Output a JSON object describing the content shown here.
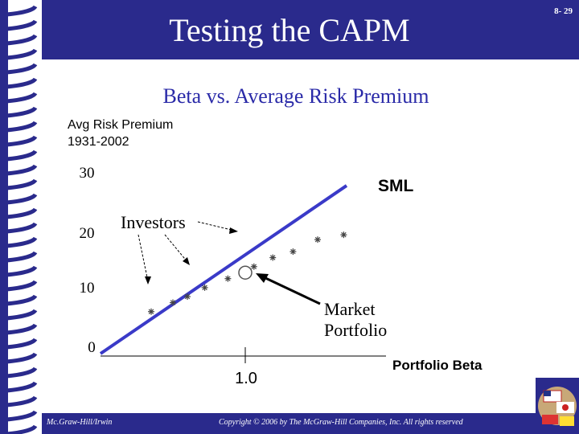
{
  "slide": {
    "title": "Testing the CAPM",
    "number": "8- 29",
    "footer_publisher": "Mc.Graw-Hill/Irwin",
    "footer_copyright": "Copyright © 2006 by The McGraw-Hill Companies, Inc. All rights reserved"
  },
  "colors": {
    "band": "#2a2a8c",
    "accent_text": "#2a2aa8",
    "sml_line": "#3a3ac8",
    "points": "#444444"
  },
  "chart_data": {
    "type": "scatter",
    "title": "Beta vs. Average Risk Premium",
    "ylabel_line1": "Avg Risk Premium",
    "ylabel_line2": "1931-2002",
    "xlabel": "Portfolio Beta",
    "y_ticks": [
      "30",
      "20",
      "10",
      "0"
    ],
    "x_ticks": [
      "1.0"
    ],
    "xlim": [
      0,
      2.0
    ],
    "ylim": [
      0,
      30
    ],
    "sml": {
      "label": "SML",
      "x": [
        0,
        1.7
      ],
      "y": [
        0,
        28
      ]
    },
    "investors_label": "Investors",
    "market_label_line1": "Market",
    "market_label_line2": "Portfolio",
    "market_portfolio": {
      "x": 1.0,
      "y": 13.5
    },
    "points": [
      {
        "x": 0.35,
        "y": 7.0
      },
      {
        "x": 0.5,
        "y": 8.5
      },
      {
        "x": 0.6,
        "y": 9.5
      },
      {
        "x": 0.72,
        "y": 11.0
      },
      {
        "x": 0.88,
        "y": 12.5
      },
      {
        "x": 1.06,
        "y": 14.5
      },
      {
        "x": 1.19,
        "y": 16.0
      },
      {
        "x": 1.33,
        "y": 17.0
      },
      {
        "x": 1.5,
        "y": 19.0
      },
      {
        "x": 1.68,
        "y": 19.8
      }
    ]
  }
}
